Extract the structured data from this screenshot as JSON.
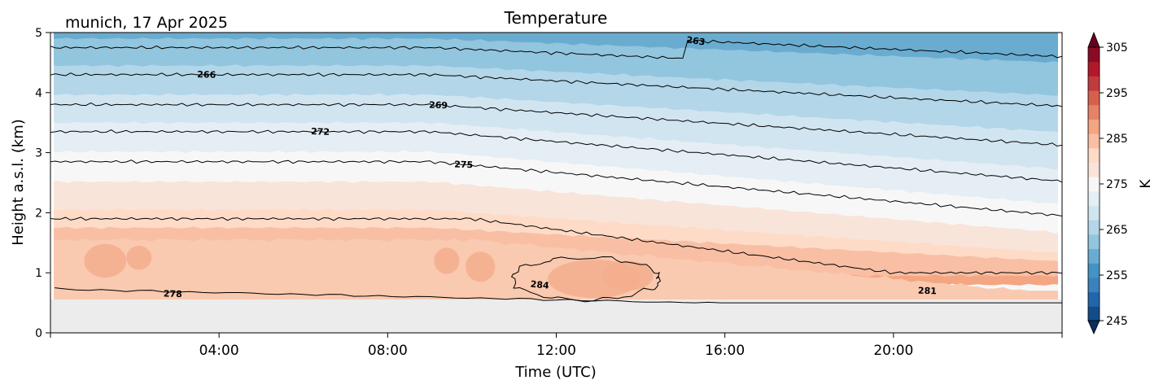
{
  "chart_data": {
    "type": "heatmap",
    "title": "Temperature",
    "subtitle": "munich, 17 Apr 2025",
    "xlabel": "Time (UTC)",
    "ylabel": "Height a.s.l. (km)",
    "xlim_hours": [
      0,
      24
    ],
    "ylim": [
      0,
      5
    ],
    "x_tick_labels": [
      {
        "hour": 4,
        "label": "04:00"
      },
      {
        "hour": 8,
        "label": "08:00"
      },
      {
        "hour": 12,
        "label": "12:00"
      },
      {
        "hour": 16,
        "label": "16:00"
      },
      {
        "hour": 20,
        "label": "20:00"
      }
    ],
    "y_ticks": [
      0,
      1,
      2,
      3,
      4,
      5
    ],
    "data_bottom_km": 0.55,
    "colorbar": {
      "label": "K",
      "min": 245,
      "max": 305,
      "ticks": [
        245,
        255,
        265,
        275,
        285,
        295,
        305
      ],
      "extend": "both",
      "colors": [
        "#053061",
        "#134c88",
        "#2166ac",
        "#3a82bc",
        "#4393c3",
        "#6aacd0",
        "#92c5de",
        "#b3d6e8",
        "#d1e5f0",
        "#e4eef4",
        "#f7f7f7",
        "#f9e4d9",
        "#fddbc7",
        "#f8bfa4",
        "#f4a582",
        "#e58368",
        "#d6604d",
        "#c13b3c",
        "#b2182b",
        "#8a0b25",
        "#67001f"
      ]
    },
    "contour_lines": [
      {
        "level": 263,
        "label": "263",
        "label_at_hour": 15.3
      },
      {
        "level": 266,
        "label": "266",
        "label_at_hour": 3.7
      },
      {
        "level": 269,
        "label": "269",
        "label_at_hour": 9.2
      },
      {
        "level": 272,
        "label": "272",
        "label_at_hour": 6.4
      },
      {
        "level": 275,
        "label": "275",
        "label_at_hour": 9.8
      },
      {
        "level": 278,
        "label": "278",
        "label_at_hour": 2.9
      },
      {
        "level": 281,
        "label": "281",
        "label_at_hour": 20.8
      },
      {
        "level": 284,
        "label": "284",
        "label_at_hour": 11.6
      }
    ]
  }
}
